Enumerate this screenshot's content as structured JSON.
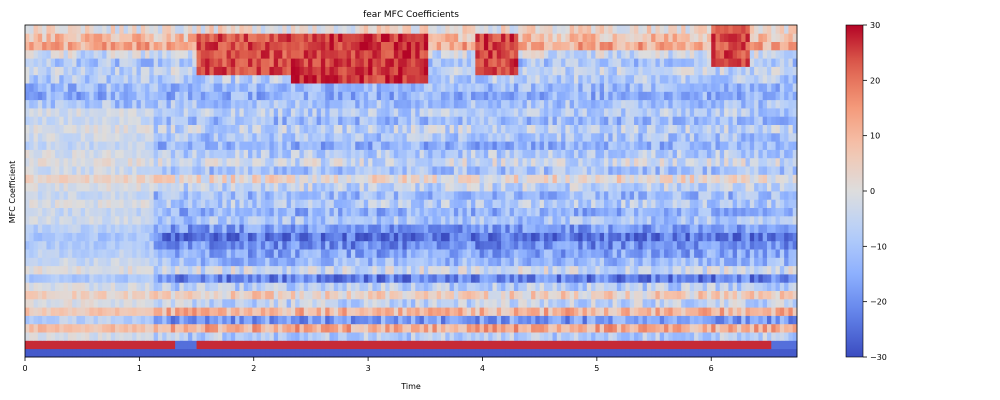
{
  "chart_data": {
    "type": "heatmap",
    "title": "fear MFC Coefficients",
    "xlabel": "Time",
    "ylabel": "MFC Coefficient",
    "xlim": [
      0,
      6.75
    ],
    "x_ticks": [
      0,
      1,
      2,
      3,
      4,
      5,
      6
    ],
    "x_tick_labels": [
      "0",
      "1",
      "2",
      "3",
      "4",
      "5",
      "6"
    ],
    "y_ticks": [],
    "n_coefficients": 40,
    "colormap": "coolwarm",
    "colorbar": {
      "min": -30,
      "max": 30,
      "ticks": [
        30,
        20,
        10,
        0,
        -10,
        -20,
        -30
      ],
      "tick_labels": [
        "30",
        "20",
        "10",
        "0",
        "−10",
        "−20",
        "−30"
      ]
    },
    "grid": false,
    "value_profile_by_coefficient": [
      -28,
      27,
      -8,
      12,
      -18,
      10,
      -6,
      4,
      -8,
      -22,
      -4,
      -12,
      -16,
      -20,
      -24,
      -18,
      -10,
      -14,
      -8,
      -12,
      -6,
      2,
      -10,
      -4,
      -8,
      -14,
      -10,
      -6,
      -12,
      -8,
      -10,
      -14,
      -12,
      -8,
      -6,
      -10,
      -4,
      12,
      8,
      2
    ],
    "notable_regions": [
      {
        "time_range": [
          0,
          1.3
        ],
        "coefficient": 1,
        "value": 28
      },
      {
        "time_range": [
          1.5,
          6.5
        ],
        "coefficient": 1,
        "value": 26
      },
      {
        "time_range": [
          1.5,
          2.3
        ],
        "coefficients": [
          34,
          38
        ],
        "value": 24
      },
      {
        "time_range": [
          2.3,
          3.5
        ],
        "coefficients": [
          33,
          38
        ],
        "value": 26
      },
      {
        "time_range": [
          3.9,
          4.3
        ],
        "coefficients": [
          34,
          38
        ],
        "value": 25
      },
      {
        "time_range": [
          6.0,
          6.3
        ],
        "coefficients": [
          35,
          39
        ],
        "value": 24
      }
    ]
  }
}
